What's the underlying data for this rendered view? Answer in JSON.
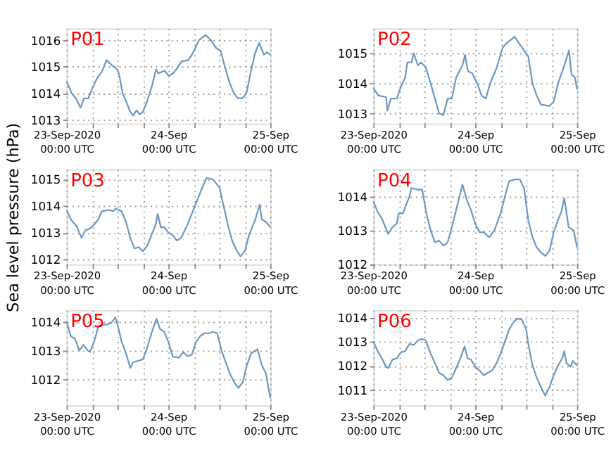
{
  "chart_data": [
    {
      "type": "line",
      "title": "P01",
      "color": "#6b9ac4",
      "grid": true,
      "xlim": [
        "2020-09-23T00:00",
        "2020-09-25T00:00"
      ],
      "xticks": [
        {
          "value": "2020-09-23T00:00",
          "label": "23-Sep-2020\n00:00 UTC"
        },
        {
          "value": "2020-09-23T06:00",
          "label": null
        },
        {
          "value": "2020-09-23T12:00",
          "label": null
        },
        {
          "value": "2020-09-23T18:00",
          "label": null
        },
        {
          "value": "2020-09-24T00:00",
          "label": "24-Sep\n00:00 UTC"
        },
        {
          "value": "2020-09-24T06:00",
          "label": null
        },
        {
          "value": "2020-09-24T12:00",
          "label": null
        },
        {
          "value": "2020-09-24T18:00",
          "label": null
        },
        {
          "value": "2020-09-25T00:00",
          "label": "25-Sep\n00:00 UTC"
        }
      ],
      "ylim": [
        1012.85,
        1016.45
      ],
      "yticks": [
        1013,
        1014,
        1015,
        1016
      ],
      "x": [
        "2020-09-23T00:00",
        "2020-09-23T01:12",
        "2020-09-23T02:12",
        "2020-09-23T03:18",
        "2020-09-23T04:06",
        "2020-09-23T05:06",
        "2020-09-23T06:06",
        "2020-09-23T07:18",
        "2020-09-23T08:18",
        "2020-09-23T09:24",
        "2020-09-23T10:24",
        "2020-09-23T11:54",
        "2020-09-23T12:24",
        "2020-09-23T13:12",
        "2020-09-23T14:00",
        "2020-09-23T15:00",
        "2020-09-23T15:42",
        "2020-09-23T16:30",
        "2020-09-23T17:12",
        "2020-09-23T18:00",
        "2020-09-23T19:00",
        "2020-09-23T20:00",
        "2020-09-23T21:06",
        "2020-09-23T21:36",
        "2020-09-23T22:24",
        "2020-09-23T23:06",
        "2020-09-24T00:06",
        "2020-09-24T01:06",
        "2020-09-24T02:06",
        "2020-09-24T03:06",
        "2020-09-24T04:42",
        "2020-09-24T05:42",
        "2020-09-24T07:12",
        "2020-09-24T08:48",
        "2020-09-24T10:00",
        "2020-09-24T11:18",
        "2020-09-24T12:18",
        "2020-09-24T13:18",
        "2020-09-24T14:24",
        "2020-09-24T15:24",
        "2020-09-24T16:24",
        "2020-09-24T17:24",
        "2020-09-24T18:24",
        "2020-09-24T19:24",
        "2020-09-24T20:24",
        "2020-09-24T21:24",
        "2020-09-24T22:30",
        "2020-09-24T23:12",
        "2020-09-25T00:00"
      ],
      "values": [
        1014.45,
        1014.0,
        1013.8,
        1013.45,
        1013.8,
        1013.8,
        1014.2,
        1014.6,
        1014.8,
        1015.25,
        1015.1,
        1014.9,
        1014.7,
        1014.0,
        1013.7,
        1013.3,
        1013.15,
        1013.35,
        1013.2,
        1013.3,
        1013.7,
        1014.2,
        1014.9,
        1014.75,
        1014.8,
        1014.85,
        1014.65,
        1014.75,
        1014.95,
        1015.2,
        1015.25,
        1015.5,
        1016.0,
        1016.2,
        1016.0,
        1015.7,
        1015.6,
        1015.0,
        1014.4,
        1014.0,
        1013.8,
        1013.8,
        1014.0,
        1014.8,
        1015.5,
        1015.9,
        1015.45,
        1015.55,
        1015.45
      ]
    },
    {
      "type": "line",
      "title": "P02",
      "color": "#6b9ac4",
      "grid": true,
      "xlim": [
        "2020-09-23T00:00",
        "2020-09-25T00:00"
      ],
      "xticks": [
        {
          "value": "2020-09-23T00:00",
          "label": "23-Sep-2020\n00:00 UTC"
        },
        {
          "value": "2020-09-23T06:00",
          "label": null
        },
        {
          "value": "2020-09-23T12:00",
          "label": null
        },
        {
          "value": "2020-09-23T18:00",
          "label": null
        },
        {
          "value": "2020-09-24T00:00",
          "label": "24-Sep\n00:00 UTC"
        },
        {
          "value": "2020-09-24T06:00",
          "label": null
        },
        {
          "value": "2020-09-24T12:00",
          "label": null
        },
        {
          "value": "2020-09-24T18:00",
          "label": null
        },
        {
          "value": "2020-09-25T00:00",
          "label": "25-Sep\n00:00 UTC"
        }
      ],
      "ylim": [
        1012.67,
        1015.83
      ],
      "yticks": [
        1013,
        1014,
        1015
      ],
      "x": [
        "2020-09-23T00:00",
        "2020-09-23T01:12",
        "2020-09-23T03:00",
        "2020-09-23T03:18",
        "2020-09-23T04:06",
        "2020-09-23T05:30",
        "2020-09-23T06:30",
        "2020-09-23T07:30",
        "2020-09-23T08:00",
        "2020-09-23T09:00",
        "2020-09-23T09:30",
        "2020-09-23T10:30",
        "2020-09-23T11:12",
        "2020-09-23T12:18",
        "2020-09-23T13:30",
        "2020-09-23T14:30",
        "2020-09-23T15:30",
        "2020-09-23T16:30",
        "2020-09-23T17:30",
        "2020-09-23T18:30",
        "2020-09-23T19:30",
        "2020-09-23T21:00",
        "2020-09-23T21:36",
        "2020-09-23T22:18",
        "2020-09-23T23:12",
        "2020-09-24T00:30",
        "2020-09-24T01:30",
        "2020-09-24T02:30",
        "2020-09-24T03:30",
        "2020-09-24T05:00",
        "2020-09-24T06:30",
        "2020-09-24T07:30",
        "2020-09-24T09:18",
        "2020-09-24T10:30",
        "2020-09-24T12:30",
        "2020-09-24T13:30",
        "2020-09-24T14:30",
        "2020-09-24T15:30",
        "2020-09-24T17:30",
        "2020-09-24T18:30",
        "2020-09-24T19:30",
        "2020-09-24T20:30",
        "2020-09-24T21:00",
        "2020-09-24T22:06",
        "2020-09-24T22:42",
        "2020-09-24T23:30",
        "2020-09-25T00:00"
      ],
      "values": [
        1013.85,
        1013.6,
        1013.55,
        1013.1,
        1013.5,
        1013.5,
        1013.9,
        1014.2,
        1014.7,
        1014.7,
        1015.0,
        1014.6,
        1014.7,
        1014.55,
        1014.0,
        1013.5,
        1013.0,
        1012.95,
        1013.5,
        1013.5,
        1014.2,
        1014.6,
        1014.95,
        1014.4,
        1014.35,
        1014.0,
        1013.6,
        1013.5,
        1014.0,
        1014.5,
        1015.2,
        1015.35,
        1015.55,
        1015.3,
        1014.9,
        1014.0,
        1013.6,
        1013.3,
        1013.25,
        1013.4,
        1014.0,
        1014.4,
        1014.6,
        1015.1,
        1014.3,
        1014.2,
        1013.8
      ]
    },
    {
      "type": "line",
      "title": "P03",
      "ylabel": "Sea level pressure (hPa)",
      "color": "#6b9ac4",
      "grid": true,
      "xlim": [
        "2020-09-23T00:00",
        "2020-09-25T00:00"
      ],
      "xticks": [
        {
          "value": "2020-09-23T00:00",
          "label": "23-Sep-2020\n00:00 UTC"
        },
        {
          "value": "2020-09-23T06:00",
          "label": null
        },
        {
          "value": "2020-09-23T12:00",
          "label": null
        },
        {
          "value": "2020-09-23T18:00",
          "label": null
        },
        {
          "value": "2020-09-24T00:00",
          "label": "24-Sep\n00:00 UTC"
        },
        {
          "value": "2020-09-24T06:00",
          "label": null
        },
        {
          "value": "2020-09-24T12:00",
          "label": null
        },
        {
          "value": "2020-09-24T18:00",
          "label": null
        },
        {
          "value": "2020-09-25T00:00",
          "label": "25-Sep\n00:00 UTC"
        }
      ],
      "ylim": [
        1011.8,
        1015.38
      ],
      "yticks": [
        1012,
        1013,
        1014,
        1015
      ],
      "x": [
        "2020-09-23T00:00",
        "2020-09-23T01:00",
        "2020-09-23T02:30",
        "2020-09-23T03:30",
        "2020-09-23T04:30",
        "2020-09-23T05:30",
        "2020-09-23T06:30",
        "2020-09-23T07:30",
        "2020-09-23T08:18",
        "2020-09-23T10:00",
        "2020-09-23T11:00",
        "2020-09-23T11:30",
        "2020-09-23T13:00",
        "2020-09-23T14:00",
        "2020-09-23T15:00",
        "2020-09-23T16:00",
        "2020-09-23T17:00",
        "2020-09-23T18:00",
        "2020-09-23T19:00",
        "2020-09-23T20:00",
        "2020-09-23T21:00",
        "2020-09-23T21:30",
        "2020-09-23T22:12",
        "2020-09-23T23:00",
        "2020-09-24T00:00",
        "2020-09-24T01:00",
        "2020-09-24T02:00",
        "2020-09-24T03:00",
        "2020-09-24T04:30",
        "2020-09-24T06:00",
        "2020-09-24T07:00",
        "2020-09-24T08:00",
        "2020-09-24T09:00",
        "2020-09-24T10:30",
        "2020-09-24T12:00",
        "2020-09-24T13:00",
        "2020-09-24T14:00",
        "2020-09-24T15:00",
        "2020-09-24T16:00",
        "2020-09-24T17:00",
        "2020-09-24T18:00",
        "2020-09-24T19:00",
        "2020-09-24T20:30",
        "2020-09-24T21:30",
        "2020-09-24T22:00",
        "2020-09-24T23:00",
        "2020-09-25T00:00"
      ],
      "values": [
        1013.85,
        1013.5,
        1013.2,
        1012.8,
        1013.1,
        1013.15,
        1013.3,
        1013.5,
        1013.8,
        1013.85,
        1013.8,
        1013.9,
        1013.8,
        1013.4,
        1012.8,
        1012.4,
        1012.45,
        1012.3,
        1012.5,
        1012.9,
        1013.3,
        1013.7,
        1013.2,
        1013.2,
        1013.0,
        1012.9,
        1012.7,
        1012.8,
        1013.3,
        1013.9,
        1014.3,
        1014.7,
        1015.05,
        1015.0,
        1014.7,
        1014.0,
        1013.3,
        1012.7,
        1012.35,
        1012.1,
        1012.3,
        1012.9,
        1013.5,
        1014.05,
        1013.5,
        1013.4,
        1013.2
      ]
    },
    {
      "type": "line",
      "title": "P04",
      "color": "#6b9ac4",
      "grid": true,
      "xlim": [
        "2020-09-23T00:00",
        "2020-09-25T00:00"
      ],
      "xticks": [
        {
          "value": "2020-09-23T00:00",
          "label": "23-Sep-2020\n00:00 UTC"
        },
        {
          "value": "2020-09-23T06:00",
          "label": null
        },
        {
          "value": "2020-09-23T12:00",
          "label": null
        },
        {
          "value": "2020-09-23T18:00",
          "label": null
        },
        {
          "value": "2020-09-24T00:00",
          "label": "24-Sep\n00:00 UTC"
        },
        {
          "value": "2020-09-24T06:00",
          "label": null
        },
        {
          "value": "2020-09-24T12:00",
          "label": null
        },
        {
          "value": "2020-09-24T18:00",
          "label": null
        },
        {
          "value": "2020-09-25T00:00",
          "label": "25-Sep\n00:00 UTC"
        }
      ],
      "ylim": [
        1012,
        1014.8
      ],
      "yticks": [
        1012,
        1013,
        1014
      ],
      "x": [
        "2020-09-23T00:00",
        "2020-09-23T01:00",
        "2020-09-23T02:00",
        "2020-09-23T03:00",
        "2020-09-23T03:30",
        "2020-09-23T04:30",
        "2020-09-23T05:30",
        "2020-09-23T06:00",
        "2020-09-23T07:00",
        "2020-09-23T07:30",
        "2020-09-23T08:30",
        "2020-09-23T09:00",
        "2020-09-23T10:30",
        "2020-09-23T11:30",
        "2020-09-23T12:30",
        "2020-09-23T13:30",
        "2020-09-23T14:30",
        "2020-09-23T15:30",
        "2020-09-23T16:30",
        "2020-09-23T17:30",
        "2020-09-23T18:30",
        "2020-09-23T19:30",
        "2020-09-23T21:00",
        "2020-09-23T22:00",
        "2020-09-23T23:00",
        "2020-09-24T00:00",
        "2020-09-24T01:00",
        "2020-09-24T02:00",
        "2020-09-24T03:18",
        "2020-09-24T04:30",
        "2020-09-24T06:00",
        "2020-09-24T07:00",
        "2020-09-24T08:00",
        "2020-09-24T09:18",
        "2020-09-24T10:30",
        "2020-09-24T11:30",
        "2020-09-24T12:30",
        "2020-09-24T13:30",
        "2020-09-24T14:30",
        "2020-09-24T15:30",
        "2020-09-24T16:30",
        "2020-09-24T17:30",
        "2020-09-24T18:30",
        "2020-09-24T19:30",
        "2020-09-24T20:18",
        "2020-09-24T21:00",
        "2020-09-24T22:00",
        "2020-09-24T23:12",
        "2020-09-25T00:00"
      ],
      "values": [
        1013.85,
        1013.55,
        1013.35,
        1013.05,
        1012.9,
        1013.1,
        1013.2,
        1013.5,
        1013.5,
        1013.7,
        1014.0,
        1014.25,
        1014.2,
        1014.2,
        1013.5,
        1013.0,
        1012.65,
        1012.7,
        1012.55,
        1012.65,
        1013.1,
        1013.6,
        1014.35,
        1013.9,
        1013.6,
        1013.2,
        1012.95,
        1012.95,
        1012.8,
        1013.0,
        1013.5,
        1014.0,
        1014.45,
        1014.5,
        1014.5,
        1014.25,
        1013.3,
        1012.8,
        1012.5,
        1012.35,
        1012.25,
        1012.4,
        1012.95,
        1013.3,
        1013.55,
        1013.95,
        1013.1,
        1013.0,
        1012.5
      ]
    },
    {
      "type": "line",
      "title": "P05",
      "color": "#6b9ac4",
      "grid": true,
      "xlim": [
        "2020-09-23T00:00",
        "2020-09-25T00:00"
      ],
      "xticks": [
        {
          "value": "2020-09-23T00:00",
          "label": "23-Sep-2020\n00:00 UTC"
        },
        {
          "value": "2020-09-23T06:00",
          "label": null
        },
        {
          "value": "2020-09-23T12:00",
          "label": null
        },
        {
          "value": "2020-09-23T18:00",
          "label": null
        },
        {
          "value": "2020-09-24T00:00",
          "label": "24-Sep\n00:00 UTC"
        },
        {
          "value": "2020-09-24T06:00",
          "label": null
        },
        {
          "value": "2020-09-24T12:00",
          "label": null
        },
        {
          "value": "2020-09-24T18:00",
          "label": null
        },
        {
          "value": "2020-09-25T00:00",
          "label": "25-Sep\n00:00 UTC"
        }
      ],
      "ylim": [
        1011.1,
        1014.4
      ],
      "yticks": [
        1012,
        1013,
        1014
      ],
      "x": [
        "2020-09-23T00:00",
        "2020-09-23T01:00",
        "2020-09-23T02:00",
        "2020-09-23T03:00",
        "2020-09-23T04:00",
        "2020-09-23T05:00",
        "2020-09-23T05:30",
        "2020-09-23T06:30",
        "2020-09-23T07:30",
        "2020-09-23T08:30",
        "2020-09-23T09:30",
        "2020-09-23T10:30",
        "2020-09-23T11:30",
        "2020-09-23T12:00",
        "2020-09-23T13:00",
        "2020-09-23T14:00",
        "2020-09-23T15:00",
        "2020-09-23T15:42",
        "2020-09-23T17:00",
        "2020-09-23T18:00",
        "2020-09-23T19:00",
        "2020-09-23T20:00",
        "2020-09-23T21:12",
        "2020-09-23T22:00",
        "2020-09-23T23:00",
        "2020-09-24T00:00",
        "2020-09-24T01:00",
        "2020-09-24T02:30",
        "2020-09-24T03:30",
        "2020-09-24T04:30",
        "2020-09-24T05:30",
        "2020-09-24T06:30",
        "2020-09-24T07:30",
        "2020-09-24T08:30",
        "2020-09-24T09:30",
        "2020-09-24T10:30",
        "2020-09-24T11:30",
        "2020-09-24T12:30",
        "2020-09-24T13:30",
        "2020-09-24T14:30",
        "2020-09-24T15:30",
        "2020-09-24T16:30",
        "2020-09-24T17:30",
        "2020-09-24T18:30",
        "2020-09-24T19:30",
        "2020-09-24T21:00",
        "2020-09-24T22:00",
        "2020-09-24T23:00",
        "2020-09-25T00:00"
      ],
      "values": [
        1014.0,
        1013.5,
        1013.4,
        1013.0,
        1013.2,
        1013.0,
        1012.95,
        1013.3,
        1013.85,
        1013.9,
        1013.9,
        1013.95,
        1014.15,
        1013.9,
        1013.3,
        1012.9,
        1012.4,
        1012.6,
        1012.65,
        1012.7,
        1013.1,
        1013.6,
        1014.1,
        1013.75,
        1013.65,
        1013.3,
        1012.8,
        1012.75,
        1012.95,
        1012.8,
        1012.85,
        1013.3,
        1013.5,
        1013.6,
        1013.6,
        1013.65,
        1013.6,
        1013.0,
        1012.6,
        1012.2,
        1011.9,
        1011.7,
        1011.9,
        1012.5,
        1012.9,
        1013.05,
        1012.5,
        1012.2,
        1011.35
      ]
    },
    {
      "type": "line",
      "title": "P06",
      "color": "#6b9ac4",
      "grid": true,
      "xlim": [
        "2020-09-23T00:00",
        "2020-09-25T00:00"
      ],
      "xticks": [
        {
          "value": "2020-09-23T00:00",
          "label": "23-Sep-2020\n00:00 UTC"
        },
        {
          "value": "2020-09-23T06:00",
          "label": null
        },
        {
          "value": "2020-09-23T12:00",
          "label": null
        },
        {
          "value": "2020-09-23T18:00",
          "label": null
        },
        {
          "value": "2020-09-24T00:00",
          "label": "24-Sep\n00:00 UTC"
        },
        {
          "value": "2020-09-24T06:00",
          "label": null
        },
        {
          "value": "2020-09-24T12:00",
          "label": null
        },
        {
          "value": "2020-09-24T18:00",
          "label": null
        },
        {
          "value": "2020-09-25T00:00",
          "label": "25-Sep\n00:00 UTC"
        }
      ],
      "ylim": [
        1010.35,
        1014.3
      ],
      "yticks": [
        1011,
        1012,
        1013,
        1014
      ],
      "x": [
        "2020-09-23T00:00",
        "2020-09-23T01:00",
        "2020-09-23T02:00",
        "2020-09-23T03:00",
        "2020-09-23T03:30",
        "2020-09-23T04:30",
        "2020-09-23T05:30",
        "2020-09-23T06:30",
        "2020-09-23T07:30",
        "2020-09-23T08:30",
        "2020-09-23T09:30",
        "2020-09-23T10:30",
        "2020-09-23T11:30",
        "2020-09-23T12:18",
        "2020-09-23T13:30",
        "2020-09-23T14:30",
        "2020-09-23T15:30",
        "2020-09-23T16:30",
        "2020-09-23T17:30",
        "2020-09-23T18:30",
        "2020-09-23T19:30",
        "2020-09-23T20:30",
        "2020-09-23T21:30",
        "2020-09-23T22:12",
        "2020-09-23T23:00",
        "2020-09-24T00:00",
        "2020-09-24T01:00",
        "2020-09-24T02:00",
        "2020-09-24T03:00",
        "2020-09-24T04:00",
        "2020-09-24T05:00",
        "2020-09-24T06:00",
        "2020-09-24T07:00",
        "2020-09-24T08:00",
        "2020-09-24T09:00",
        "2020-09-24T10:00",
        "2020-09-24T11:00",
        "2020-09-24T12:00",
        "2020-09-24T12:30",
        "2020-09-24T13:30",
        "2020-09-24T14:30",
        "2020-09-24T15:30",
        "2020-09-24T16:30",
        "2020-09-24T17:30",
        "2020-09-24T18:30",
        "2020-09-24T19:30",
        "2020-09-24T20:30",
        "2020-09-24T21:00",
        "2020-09-24T21:30",
        "2020-09-24T22:30",
        "2020-09-24T23:00",
        "2020-09-25T00:00"
      ],
      "values": [
        1013.0,
        1012.6,
        1012.3,
        1011.95,
        1011.9,
        1012.25,
        1012.3,
        1012.55,
        1012.6,
        1012.9,
        1012.85,
        1013.05,
        1013.1,
        1013.05,
        1012.5,
        1012.1,
        1011.7,
        1011.6,
        1011.4,
        1011.5,
        1011.9,
        1012.3,
        1012.8,
        1012.3,
        1012.25,
        1011.95,
        1011.8,
        1011.6,
        1011.7,
        1011.8,
        1012.1,
        1012.5,
        1013.0,
        1013.5,
        1013.8,
        1013.95,
        1013.9,
        1013.5,
        1012.9,
        1012.0,
        1011.5,
        1011.1,
        1010.75,
        1011.1,
        1011.6,
        1012.0,
        1012.3,
        1012.6,
        1012.1,
        1011.95,
        1012.2,
        1012.0
      ]
    }
  ]
}
